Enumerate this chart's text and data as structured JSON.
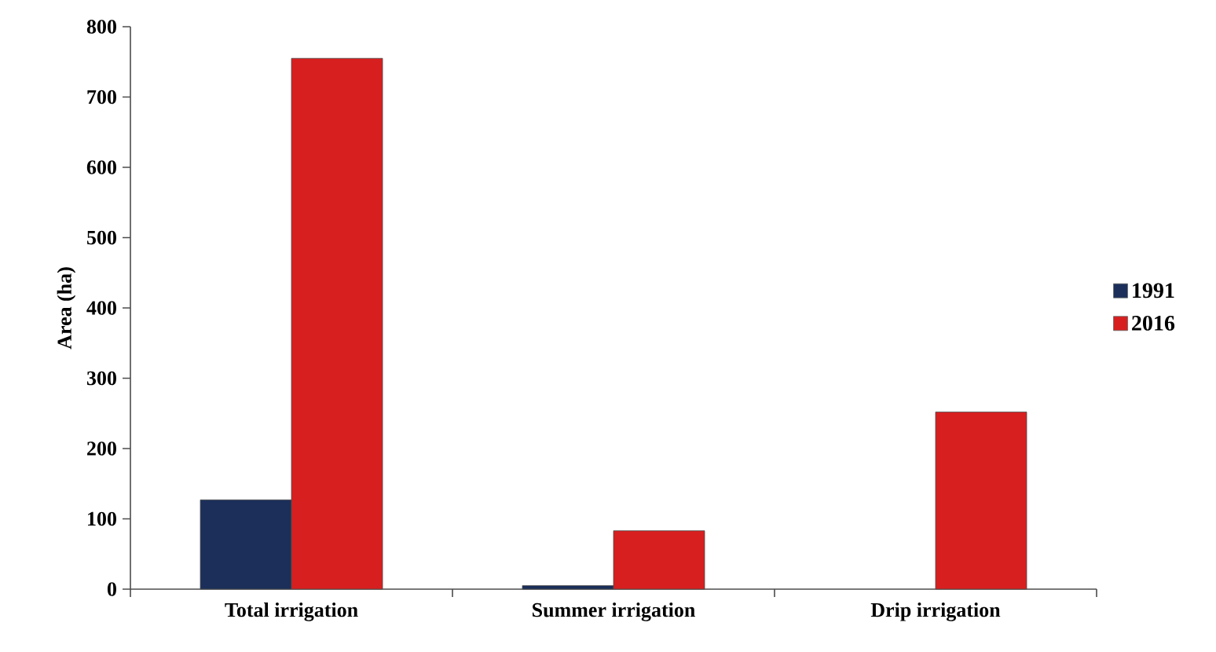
{
  "chart_data": {
    "type": "bar",
    "ylabel": "Area (ha)",
    "categories": [
      "Total irrigation",
      "Summer irrigation",
      "Drip irrigation"
    ],
    "series": [
      {
        "name": "1991",
        "color": "#1b2f5a",
        "values": [
          127,
          5,
          null
        ]
      },
      {
        "name": "2016",
        "color": "#d71f1f",
        "values": [
          755,
          83,
          252
        ]
      }
    ],
    "ylim": [
      0,
      800
    ],
    "yticks": [
      0,
      100,
      200,
      300,
      400,
      500,
      600,
      700,
      800
    ],
    "grid": false,
    "legend": "right"
  }
}
